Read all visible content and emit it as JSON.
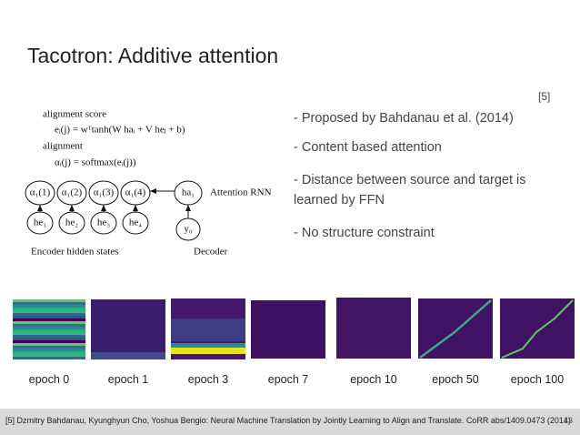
{
  "slide": {
    "title": "Tacotron: Additive attention",
    "reference": "[5]",
    "bullets": [
      "- Proposed by Bahdanau et al. (2014)",
      "- Content based attention",
      "- Distance between source and target is learned by FFN",
      "- No structure constraint"
    ],
    "diagram": {
      "score_label": "alignment score",
      "score_formula": "eᵢ(j) = wᵀtanh(W haᵢ + V heⱼ + b)",
      "alignment_label": "alignment",
      "alignment_formula": "αᵢ(j) = softmax(eᵢ(j))",
      "alphas": [
        "α₁(1)",
        "α₁(2)",
        "α₁(3)",
        "α₁(4)"
      ],
      "encoder_states": [
        "he₁",
        "he₂",
        "he₃",
        "he₄"
      ],
      "decoder_state": "ha₁",
      "decoder_input": "y₀",
      "attention_rnn": "Attention RNN",
      "encoder_caption": "Encoder hidden states",
      "decoder_caption": "Decoder"
    },
    "epochs": [
      "epoch 0",
      "epoch 1",
      "epoch 3",
      "epoch 7",
      "epoch 10",
      "epoch 50",
      "epoch 100"
    ],
    "footer": "[5] Dzmitry Bahdanau, Kyunghyun Cho, Yoshua Bengio: Neural Machine Translation by Jointly Learning to Align and Translate. CoRR abs/1409.0473 (2014)",
    "page_number": "13"
  }
}
